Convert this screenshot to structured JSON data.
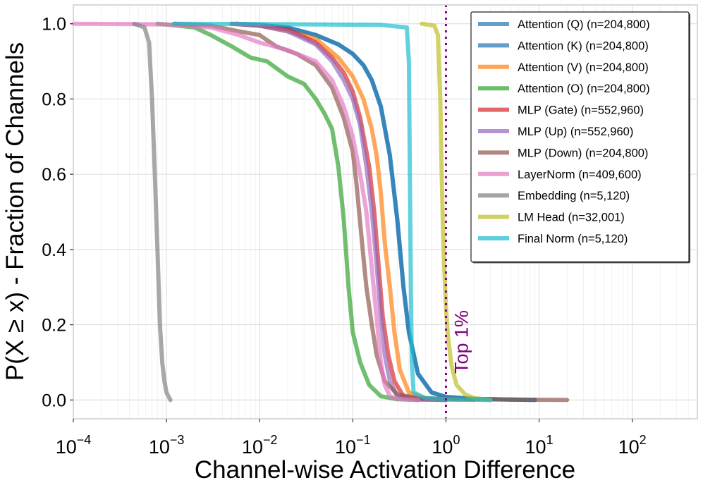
{
  "chart_data": {
    "type": "line",
    "title": "",
    "xlabel": "Channel-wise Activation Difference",
    "ylabel": "P(X ≥ x) - Fraction of Channels",
    "x_scale": "log",
    "xlim": [
      0.0001,
      500
    ],
    "ylim": [
      -0.05,
      1.05
    ],
    "y_ticks": [
      0.0,
      0.2,
      0.4,
      0.6,
      0.8,
      1.0
    ],
    "y_tick_labels": [
      "0.0",
      "0.2",
      "0.4",
      "0.6",
      "0.8",
      "1.0"
    ],
    "x_ticks": [
      0.0001,
      0.001,
      0.01,
      0.1,
      1,
      10,
      100
    ],
    "x_tick_labels": [
      {
        "base": "10",
        "exp": "−4"
      },
      {
        "base": "10",
        "exp": "−3"
      },
      {
        "base": "10",
        "exp": "−2"
      },
      {
        "base": "10",
        "exp": "−1"
      },
      {
        "base": "10",
        "exp": "0"
      },
      {
        "base": "10",
        "exp": "1"
      },
      {
        "base": "10",
        "exp": "2"
      }
    ],
    "grid": true,
    "legend_position": "top-right",
    "annotation": {
      "text": "Top 1%",
      "x": 1.0,
      "color": "#800080"
    },
    "series": [
      {
        "name": "Attention (Q) (n=204,800)",
        "color": "#1f77b4",
        "points": [
          [
            0.0055,
            1.0
          ],
          [
            0.01,
            0.997
          ],
          [
            0.02,
            0.99
          ],
          [
            0.04,
            0.97
          ],
          [
            0.07,
            0.945
          ],
          [
            0.1,
            0.92
          ],
          [
            0.13,
            0.89
          ],
          [
            0.16,
            0.85
          ],
          [
            0.2,
            0.78
          ],
          [
            0.25,
            0.65
          ],
          [
            0.3,
            0.48
          ],
          [
            0.35,
            0.3
          ],
          [
            0.4,
            0.18
          ],
          [
            0.5,
            0.07
          ],
          [
            0.7,
            0.02
          ],
          [
            1.0,
            0.008
          ],
          [
            2.0,
            0.003
          ],
          [
            5.0,
            0.001
          ],
          [
            9.0,
            0.0
          ]
        ]
      },
      {
        "name": "Attention (K) (n=204,800)",
        "color": "#1f77b4",
        "points": [
          [
            0.0055,
            1.0
          ],
          [
            0.01,
            0.997
          ],
          [
            0.02,
            0.99
          ],
          [
            0.04,
            0.97
          ],
          [
            0.07,
            0.945
          ],
          [
            0.1,
            0.92
          ],
          [
            0.13,
            0.89
          ],
          [
            0.16,
            0.85
          ],
          [
            0.2,
            0.78
          ],
          [
            0.25,
            0.65
          ],
          [
            0.3,
            0.48
          ],
          [
            0.35,
            0.3
          ],
          [
            0.4,
            0.18
          ],
          [
            0.5,
            0.07
          ],
          [
            0.7,
            0.02
          ],
          [
            1.0,
            0.008
          ],
          [
            2.0,
            0.003
          ],
          [
            5.0,
            0.001
          ],
          [
            9.0,
            0.0
          ]
        ]
      },
      {
        "name": "Attention (V) (n=204,800)",
        "color": "#ff7f0e",
        "points": [
          [
            0.0055,
            1.0
          ],
          [
            0.01,
            0.995
          ],
          [
            0.02,
            0.98
          ],
          [
            0.04,
            0.96
          ],
          [
            0.07,
            0.91
          ],
          [
            0.1,
            0.86
          ],
          [
            0.13,
            0.8
          ],
          [
            0.16,
            0.72
          ],
          [
            0.18,
            0.65
          ],
          [
            0.2,
            0.55
          ],
          [
            0.22,
            0.42
          ],
          [
            0.25,
            0.3
          ],
          [
            0.28,
            0.18
          ],
          [
            0.32,
            0.08
          ],
          [
            0.4,
            0.02
          ],
          [
            0.6,
            0.005
          ],
          [
            1.0,
            0.001
          ],
          [
            2.0,
            0.0
          ]
        ]
      },
      {
        "name": "Attention (O) (n=204,800)",
        "color": "#2ca02c",
        "points": [
          [
            0.0008,
            1.0
          ],
          [
            0.001,
            0.998
          ],
          [
            0.002,
            0.99
          ],
          [
            0.003,
            0.97
          ],
          [
            0.005,
            0.94
          ],
          [
            0.008,
            0.91
          ],
          [
            0.012,
            0.9
          ],
          [
            0.02,
            0.86
          ],
          [
            0.03,
            0.84
          ],
          [
            0.04,
            0.8
          ],
          [
            0.05,
            0.76
          ],
          [
            0.06,
            0.72
          ],
          [
            0.07,
            0.62
          ],
          [
            0.08,
            0.48
          ],
          [
            0.09,
            0.3
          ],
          [
            0.1,
            0.18
          ],
          [
            0.12,
            0.1
          ],
          [
            0.15,
            0.04
          ],
          [
            0.2,
            0.01
          ],
          [
            0.3,
            0.002
          ],
          [
            0.5,
            0.0
          ]
        ]
      },
      {
        "name": "MLP (Gate) (n=552,960)",
        "color": "#d62728",
        "points": [
          [
            0.005,
            1.0
          ],
          [
            0.01,
            0.995
          ],
          [
            0.02,
            0.985
          ],
          [
            0.04,
            0.95
          ],
          [
            0.06,
            0.91
          ],
          [
            0.08,
            0.87
          ],
          [
            0.1,
            0.82
          ],
          [
            0.12,
            0.75
          ],
          [
            0.15,
            0.62
          ],
          [
            0.17,
            0.5
          ],
          [
            0.19,
            0.35
          ],
          [
            0.21,
            0.22
          ],
          [
            0.24,
            0.12
          ],
          [
            0.28,
            0.05
          ],
          [
            0.35,
            0.01
          ],
          [
            0.5,
            0.002
          ],
          [
            1.0,
            0.0
          ]
        ]
      },
      {
        "name": "MLP (Up) (n=552,960)",
        "color": "#9467bd",
        "points": [
          [
            0.005,
            1.0
          ],
          [
            0.01,
            0.995
          ],
          [
            0.02,
            0.98
          ],
          [
            0.04,
            0.945
          ],
          [
            0.06,
            0.9
          ],
          [
            0.08,
            0.85
          ],
          [
            0.1,
            0.8
          ],
          [
            0.12,
            0.73
          ],
          [
            0.14,
            0.62
          ],
          [
            0.16,
            0.5
          ],
          [
            0.18,
            0.36
          ],
          [
            0.2,
            0.22
          ],
          [
            0.22,
            0.12
          ],
          [
            0.25,
            0.05
          ],
          [
            0.3,
            0.01
          ],
          [
            0.5,
            0.001
          ],
          [
            1.0,
            0.0
          ]
        ]
      },
      {
        "name": "MLP (Down) (n=204,800)",
        "color": "#8c564b",
        "points": [
          [
            0.0012,
            1.0
          ],
          [
            0.003,
            0.995
          ],
          [
            0.006,
            0.98
          ],
          [
            0.01,
            0.97
          ],
          [
            0.015,
            0.94
          ],
          [
            0.025,
            0.92
          ],
          [
            0.04,
            0.89
          ],
          [
            0.06,
            0.83
          ],
          [
            0.08,
            0.75
          ],
          [
            0.1,
            0.66
          ],
          [
            0.11,
            0.57
          ],
          [
            0.12,
            0.47
          ],
          [
            0.13,
            0.38
          ],
          [
            0.14,
            0.3
          ],
          [
            0.16,
            0.2
          ],
          [
            0.18,
            0.12
          ],
          [
            0.22,
            0.05
          ],
          [
            0.3,
            0.015
          ],
          [
            0.5,
            0.005
          ],
          [
            1.0,
            0.003
          ],
          [
            5.0,
            0.001
          ],
          [
            20.0,
            0.0
          ]
        ]
      },
      {
        "name": "LayerNorm (n=409,600)",
        "color": "#e377c2",
        "points": [
          [
            0.0001,
            1.0
          ],
          [
            0.0005,
            0.999
          ],
          [
            0.001,
            0.998
          ],
          [
            0.003,
            0.99
          ],
          [
            0.006,
            0.97
          ],
          [
            0.01,
            0.95
          ],
          [
            0.02,
            0.93
          ],
          [
            0.04,
            0.9
          ],
          [
            0.06,
            0.85
          ],
          [
            0.08,
            0.78
          ],
          [
            0.1,
            0.7
          ],
          [
            0.12,
            0.6
          ],
          [
            0.14,
            0.5
          ],
          [
            0.16,
            0.35
          ],
          [
            0.18,
            0.22
          ],
          [
            0.2,
            0.1
          ],
          [
            0.22,
            0.04
          ],
          [
            0.25,
            0.01
          ],
          [
            0.3,
            0.003
          ],
          [
            0.5,
            0.0
          ]
        ]
      },
      {
        "name": "Embedding (n=5,120)",
        "color": "#7f7f7f",
        "points": [
          [
            0.00045,
            1.0
          ],
          [
            0.00058,
            0.99
          ],
          [
            0.00065,
            0.95
          ],
          [
            0.0007,
            0.8
          ],
          [
            0.00075,
            0.6
          ],
          [
            0.0008,
            0.4
          ],
          [
            0.00085,
            0.2
          ],
          [
            0.0009,
            0.1
          ],
          [
            0.00095,
            0.05
          ],
          [
            0.001,
            0.02
          ],
          [
            0.0011,
            0.0
          ]
        ]
      },
      {
        "name": "LM Head (n=32,001)",
        "color": "#bcbd22",
        "points": [
          [
            0.55,
            1.0
          ],
          [
            0.75,
            0.995
          ],
          [
            0.82,
            0.97
          ],
          [
            0.87,
            0.8
          ],
          [
            0.9,
            0.6
          ],
          [
            0.93,
            0.45
          ],
          [
            0.96,
            0.35
          ],
          [
            1.0,
            0.25
          ],
          [
            1.05,
            0.17
          ],
          [
            1.15,
            0.09
          ],
          [
            1.3,
            0.04
          ],
          [
            1.6,
            0.015
          ],
          [
            2.0,
            0.005
          ],
          [
            3.0,
            0.0
          ]
        ]
      },
      {
        "name": "Final Norm (n=5,120)",
        "color": "#17becf",
        "points": [
          [
            0.0012,
            1.0
          ],
          [
            0.01,
            0.999
          ],
          [
            0.05,
            0.998
          ],
          [
            0.2,
            0.997
          ],
          [
            0.38,
            0.99
          ],
          [
            0.4,
            0.9
          ],
          [
            0.41,
            0.6
          ],
          [
            0.42,
            0.3
          ],
          [
            0.43,
            0.1
          ],
          [
            0.45,
            0.02
          ],
          [
            0.6,
            0.005
          ],
          [
            1.0,
            0.002
          ],
          [
            3.0,
            0.0
          ]
        ]
      }
    ]
  }
}
